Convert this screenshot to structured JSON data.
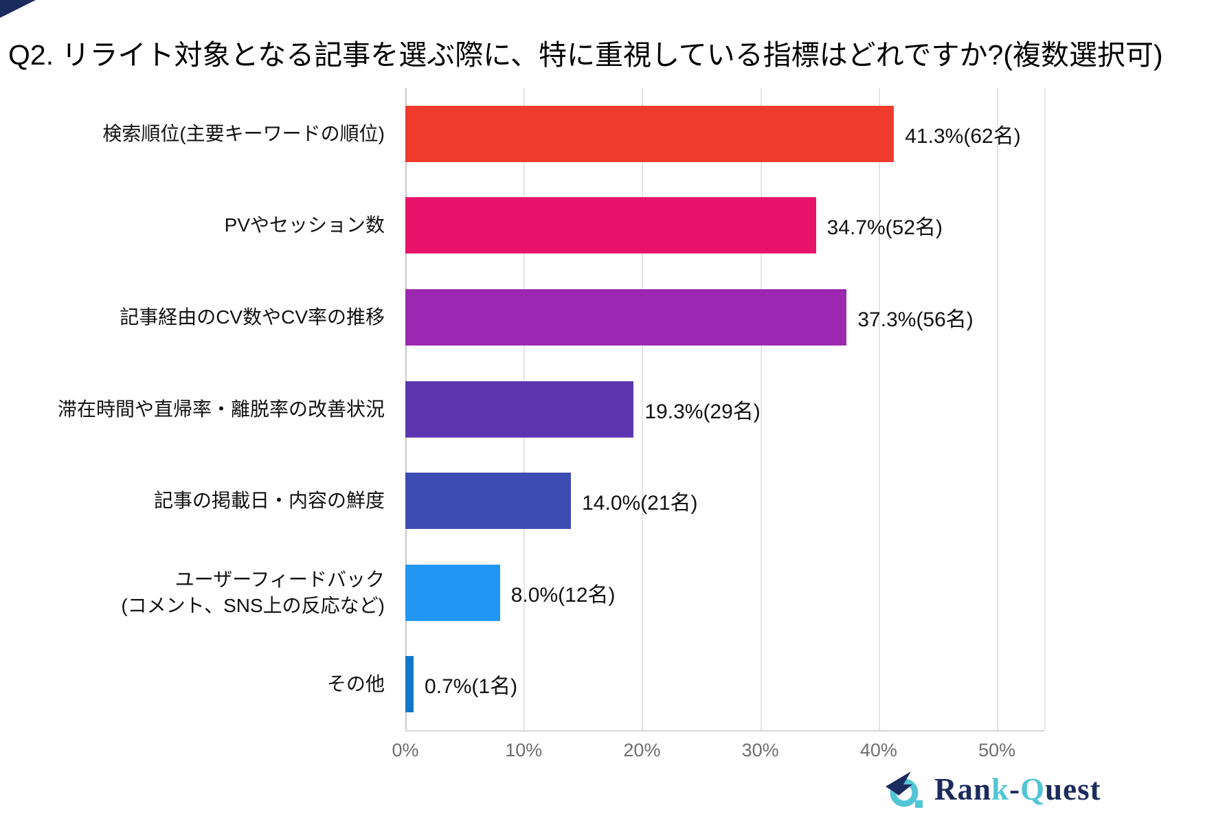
{
  "title": "Q2. リライト対象となる記事を選ぶ際に、特に重視している指標はどれですか?(複数選択可)",
  "chart_data": {
    "type": "bar",
    "orientation": "horizontal",
    "title": "Q2. リライト対象となる記事を選ぶ際に、特に重視している指標はどれですか?(複数選択可)",
    "xlabel": "",
    "ylabel": "",
    "value_unit": "%",
    "xlim": [
      0,
      54
    ],
    "grid": true,
    "axis_ticks": [
      {
        "value": 0,
        "label": "0%"
      },
      {
        "value": 10,
        "label": "10%"
      },
      {
        "value": 20,
        "label": "20%"
      },
      {
        "value": 30,
        "label": "30%"
      },
      {
        "value": 40,
        "label": "40%"
      },
      {
        "value": 50,
        "label": "50%"
      }
    ],
    "items": [
      {
        "label_lines": [
          "検索順位(主要キーワードの順位)"
        ],
        "value": 41.3,
        "count": 62,
        "value_label": "41.3%(62名)",
        "color": "#ee3b2e"
      },
      {
        "label_lines": [
          "PVやセッション数"
        ],
        "value": 34.7,
        "count": 52,
        "value_label": "34.7%(52名)",
        "color": "#e8146b"
      },
      {
        "label_lines": [
          "記事経由のCV数やCV率の推移"
        ],
        "value": 37.3,
        "count": 56,
        "value_label": "37.3%(56名)",
        "color": "#9c27b0"
      },
      {
        "label_lines": [
          "滞在時間や直帰率・離脱率の改善状況"
        ],
        "value": 19.3,
        "count": 29,
        "value_label": "19.3%(29名)",
        "color": "#5e35b1"
      },
      {
        "label_lines": [
          "記事の掲載日・内容の鮮度"
        ],
        "value": 14.0,
        "count": 21,
        "value_label": "14.0%(21名)",
        "color": "#3c4cb3"
      },
      {
        "label_lines": [
          "ユーザーフィードバック",
          "(コメント、SNS上の反応など)"
        ],
        "value": 8.0,
        "count": 12,
        "value_label": "8.0%(12名)",
        "color": "#2196f3"
      },
      {
        "label_lines": [
          "その他"
        ],
        "value": 0.7,
        "count": 1,
        "value_label": "0.7%(1名)",
        "color": "#1377c8"
      }
    ]
  },
  "logo": {
    "name": "Rank-Quest",
    "parts": [
      {
        "text": "Ran",
        "color": "#1c2b5e"
      },
      {
        "text": "k",
        "color": "#52c5d6"
      },
      {
        "text": "-",
        "color": "#1c2b5e"
      },
      {
        "text": "Q",
        "color": "#52c5d6"
      },
      {
        "text": "uest",
        "color": "#1c2b5e"
      }
    ],
    "colors": {
      "navy": "#1c2b5e",
      "teal": "#52c5d6"
    }
  },
  "decorations": {
    "corner_color": "#1c2b5e"
  }
}
